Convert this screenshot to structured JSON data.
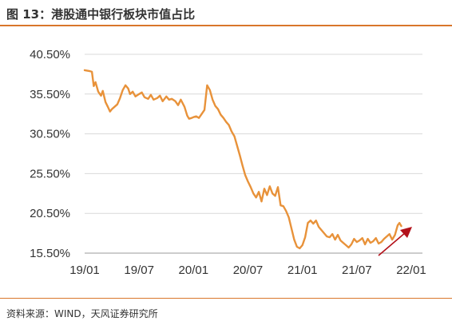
{
  "title": "图 13：港股通中银行板块市值占比",
  "source": "资料来源：WIND，天风证券研究所",
  "chart_data": {
    "type": "line",
    "title": "图 13：港股通中银行板块市值占比",
    "xlabel": "",
    "ylabel": "",
    "x_ticks": [
      "19/01",
      "19/07",
      "20/01",
      "20/07",
      "21/01",
      "21/07",
      "22/01"
    ],
    "y_ticks": [
      "40.50%",
      "35.50%",
      "30.50%",
      "25.50%",
      "20.50%",
      "15.50%"
    ],
    "y_tick_values": [
      40.5,
      35.5,
      30.5,
      25.5,
      20.5,
      15.5
    ],
    "xlim": [
      0,
      36
    ],
    "ylim": [
      15.5,
      40.5
    ],
    "grid": "horizontal",
    "line_color": "#e8923a",
    "annotation": "red arrow pointing up-right at end of series",
    "annotation_color": "#b3111a",
    "series": [
      {
        "name": "",
        "x": [
          0,
          0.5,
          0.8,
          1.0,
          1.2,
          1.5,
          1.8,
          2.0,
          2.3,
          2.6,
          2.8,
          3.0,
          3.3,
          3.6,
          3.9,
          4.2,
          4.5,
          4.8,
          5.0,
          5.3,
          5.6,
          6.0,
          6.3,
          6.6,
          7.0,
          7.3,
          7.6,
          8.0,
          8.3,
          8.6,
          9.0,
          9.3,
          9.6,
          10.0,
          10.3,
          10.6,
          11.0,
          11.3,
          11.5,
          11.8,
          12.0,
          12.3,
          12.6,
          12.9,
          13.2,
          13.5,
          13.8,
          14.1,
          14.4,
          14.7,
          15.0,
          15.3,
          15.6,
          15.9,
          16.2,
          16.5,
          16.8,
          17.1,
          17.4,
          17.7,
          18.0,
          18.3,
          18.6,
          18.9,
          19.2,
          19.5,
          19.8,
          20.1,
          20.4,
          20.7,
          21.0,
          21.3,
          21.6,
          21.9,
          22.2,
          22.5,
          22.8,
          23.1,
          23.4,
          23.7,
          24.0,
          24.3,
          24.6,
          24.9,
          25.2,
          25.5,
          25.8,
          26.1,
          26.4,
          26.7,
          27.0,
          27.3,
          27.6,
          27.9,
          28.2,
          28.5,
          28.8,
          29.1,
          29.4,
          29.7,
          30.0,
          30.3,
          30.6,
          30.9,
          31.2,
          31.5,
          31.8,
          32.1,
          32.4,
          32.7,
          33.0,
          33.3,
          33.6,
          33.9,
          34.2,
          34.5,
          34.7,
          34.9
        ],
        "values": [
          38.5,
          38.4,
          38.3,
          36.5,
          37.0,
          35.8,
          35.3,
          35.9,
          34.5,
          33.8,
          33.3,
          33.6,
          33.9,
          34.2,
          35.0,
          36.0,
          36.6,
          36.2,
          35.5,
          35.8,
          35.2,
          35.5,
          35.7,
          35.1,
          34.9,
          35.4,
          34.8,
          35.0,
          35.3,
          34.6,
          35.2,
          34.8,
          34.9,
          34.6,
          34.1,
          34.8,
          33.9,
          32.8,
          32.4,
          32.5,
          32.6,
          32.7,
          32.5,
          33.0,
          33.5,
          36.6,
          36.0,
          34.8,
          34.0,
          33.6,
          32.9,
          32.5,
          32.0,
          31.6,
          30.8,
          30.2,
          29.0,
          27.8,
          26.5,
          25.3,
          24.5,
          23.8,
          23.0,
          22.5,
          23.2,
          22.0,
          23.6,
          22.8,
          23.9,
          23.0,
          22.7,
          23.8,
          21.5,
          21.4,
          20.8,
          20.0,
          18.6,
          17.2,
          16.3,
          16.1,
          16.5,
          17.5,
          19.3,
          19.6,
          19.2,
          19.6,
          18.8,
          18.4,
          18.0,
          17.6,
          17.5,
          17.9,
          17.2,
          17.8,
          17.1,
          16.8,
          16.5,
          16.2,
          16.6,
          17.3,
          16.9,
          17.1,
          17.4,
          16.6,
          17.3,
          16.8,
          17.0,
          17.4,
          16.7,
          16.9,
          17.3,
          17.6,
          17.9,
          17.2,
          17.8,
          19.0,
          19.3,
          18.9
        ]
      }
    ]
  }
}
